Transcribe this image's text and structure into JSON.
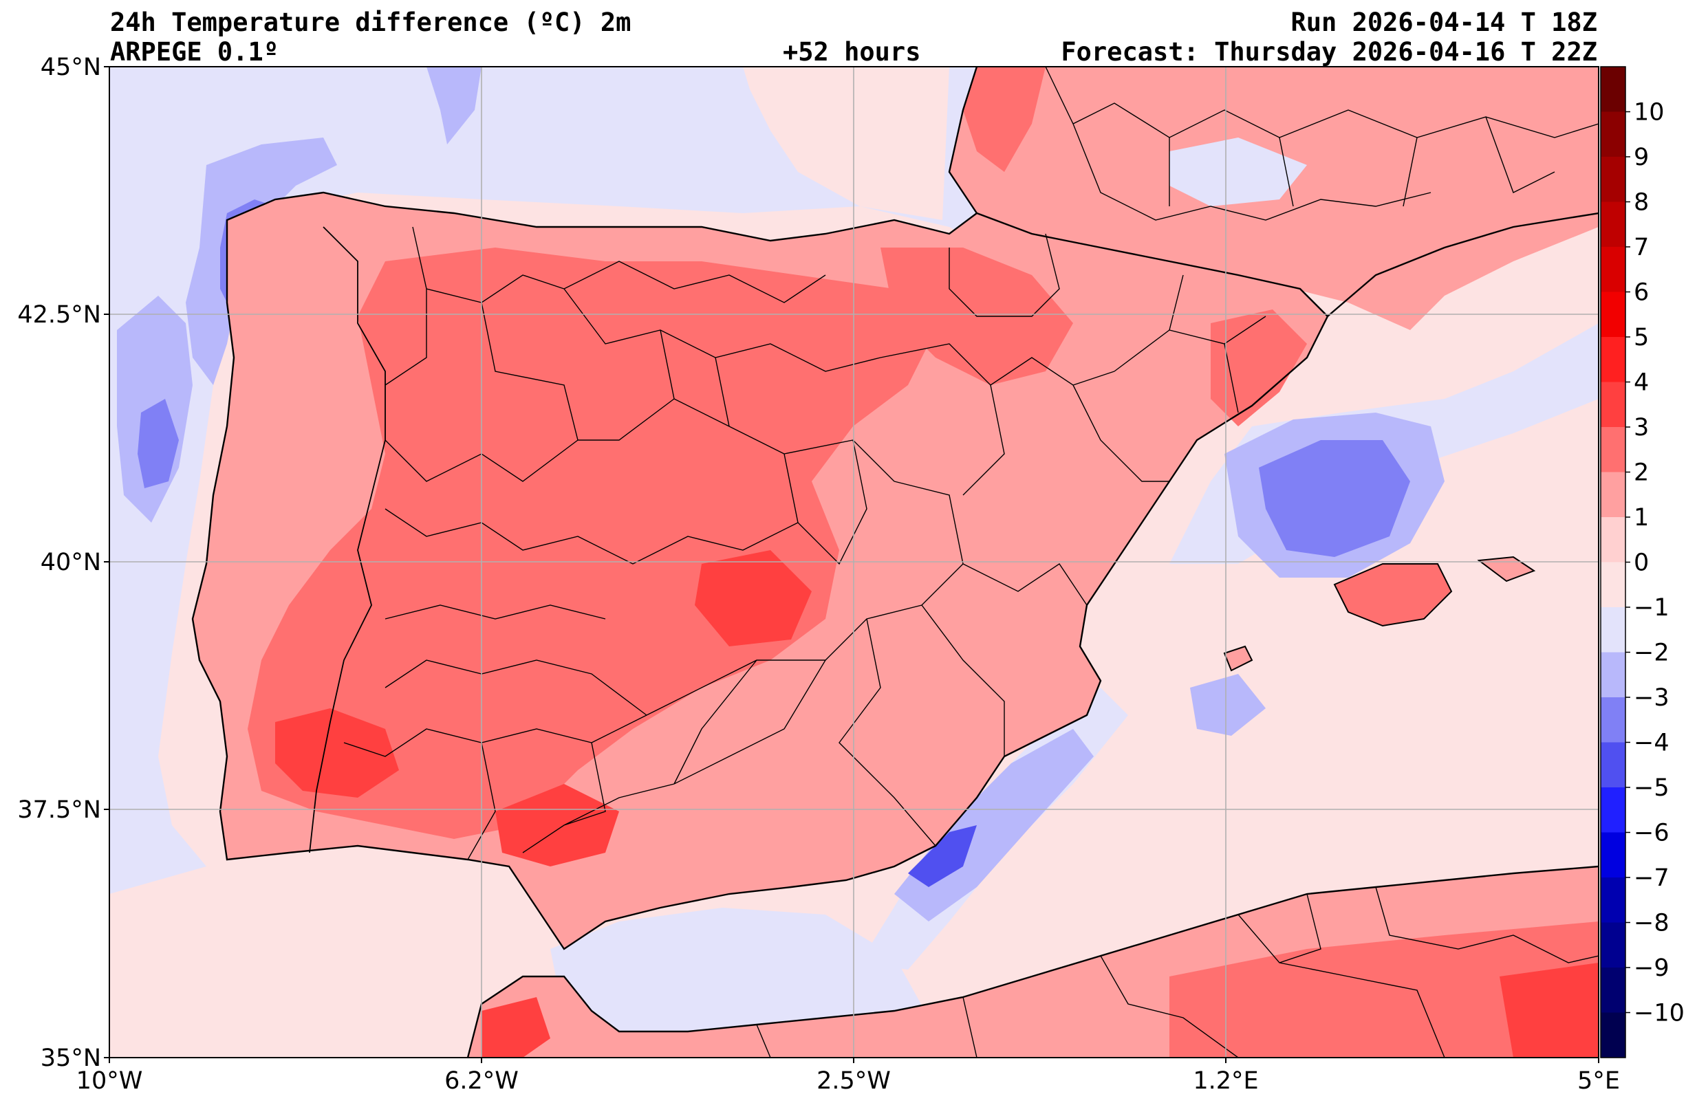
{
  "header": {
    "title": "24h Temperature difference (ºC) 2m",
    "model": "ARPEGE 0.1º",
    "lead": "+52 hours",
    "run": "Run 2026-04-14 T 18Z",
    "forecast": "Forecast: Thursday 2026-04-16 T 22Z"
  },
  "axes": {
    "lat_labels": [
      "45°N",
      "42.5°N",
      "40°N",
      "37.5°N",
      "35°N"
    ],
    "lon_labels": [
      "10°W",
      "6.2°W",
      "2.5°W",
      "1.2°E",
      "5°E"
    ]
  },
  "colorbar": {
    "labels": [
      "10",
      "9",
      "8",
      "7",
      "6",
      "5",
      "4",
      "3",
      "2",
      "1",
      "0",
      "−1",
      "−2",
      "−3",
      "−4",
      "−5",
      "−6",
      "−7",
      "−8",
      "−9",
      "−10"
    ],
    "colors": [
      "#6b0000",
      "#8b0000",
      "#a50000",
      "#bf0000",
      "#d90000",
      "#f20000",
      "#ff2020",
      "#ff4040",
      "#ff7070",
      "#ffa0a0",
      "#ffd0d0",
      "#fde3e3",
      "#e3e3fb",
      "#b8b8fb",
      "#8080f5",
      "#5050f0",
      "#2020ff",
      "#0000e0",
      "#0000b0",
      "#000090",
      "#000070",
      "#000050"
    ]
  },
  "map_colors": {
    "sea_neutral": "#fde3e3",
    "sea_cool": "#e3e3fb",
    "cool1": "#b8b8fb",
    "cool2": "#8080f5",
    "cool3": "#5050f0",
    "land_warm1": "#ffd0d0",
    "land_warm2": "#ffa0a0",
    "land_warm3": "#ff7070",
    "land_warm4": "#ff4040"
  }
}
